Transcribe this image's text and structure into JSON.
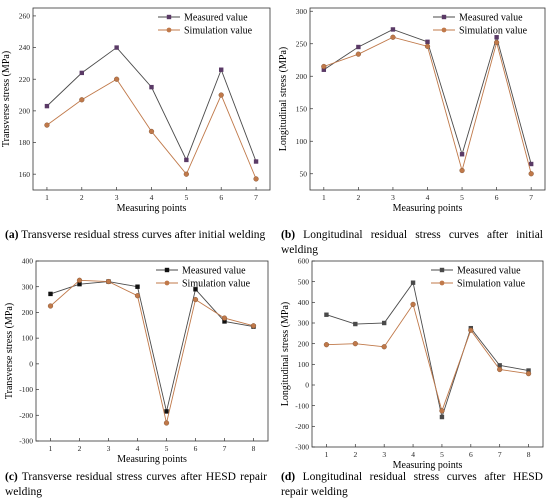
{
  "colors": {
    "measured": "#4a4a4a",
    "simulation": "#c0794a",
    "measured_marker_a": "#5a3a66",
    "measured_marker_c": "#111111"
  },
  "chart_data": [
    {
      "type": "line",
      "xlabel": "Measuring points",
      "ylabel": "Transverse stress (MPa)",
      "x": [
        1,
        2,
        3,
        4,
        5,
        6,
        7
      ],
      "xlim": [
        0.6,
        7.4
      ],
      "ylim": [
        150,
        265
      ],
      "yticks": [
        160,
        180,
        200,
        220,
        240,
        260
      ],
      "series": [
        {
          "name": "Measured value",
          "values": [
            203,
            224,
            240,
            215,
            169,
            226,
            168
          ]
        },
        {
          "name": "Simulation value",
          "values": [
            191,
            207,
            220,
            187,
            160,
            210,
            157
          ]
        }
      ],
      "legend": "top-right",
      "grid": false,
      "caption_label": "(a)",
      "caption_text": " Transverse residual stress curves after initial welding"
    },
    {
      "type": "line",
      "xlabel": "Measuring points",
      "ylabel": "Longitudinal stress (MPa)",
      "x": [
        1,
        2,
        3,
        4,
        5,
        6,
        7
      ],
      "xlim": [
        0.6,
        7.4
      ],
      "ylim": [
        25,
        305
      ],
      "yticks": [
        50,
        100,
        150,
        200,
        250,
        300
      ],
      "series": [
        {
          "name": "Measured value",
          "values": [
            210,
            245,
            272,
            253,
            80,
            260,
            65
          ]
        },
        {
          "name": "Simulation value",
          "values": [
            215,
            234,
            260,
            246,
            55,
            252,
            50
          ]
        }
      ],
      "legend": "top-right",
      "grid": false,
      "caption_label": "(b)",
      "caption_text": " Longitudinal residual stress curves after initial welding"
    },
    {
      "type": "line",
      "xlabel": "Measuring points",
      "ylabel": "Transverse stress (MPa)",
      "x": [
        1,
        2,
        3,
        4,
        5,
        6,
        7,
        8
      ],
      "xlim": [
        0.5,
        8.5
      ],
      "ylim": [
        -300,
        400
      ],
      "yticks": [
        -300,
        -200,
        -100,
        0,
        100,
        200,
        300,
        400
      ],
      "series": [
        {
          "name": "Measured value",
          "values": [
            272,
            310,
            320,
            300,
            -185,
            290,
            165,
            145
          ]
        },
        {
          "name": "Simulation value",
          "values": [
            225,
            325,
            320,
            265,
            -230,
            250,
            178,
            148
          ]
        }
      ],
      "legend": "top-right",
      "grid": false,
      "caption_label": "(c)",
      "caption_text": " Transverse residual stress curves after HESD repair welding"
    },
    {
      "type": "line",
      "xlabel": "Measuring points",
      "ylabel": "Longitudinal stress (MPa)",
      "x": [
        1,
        2,
        3,
        4,
        5,
        6,
        7,
        8
      ],
      "xlim": [
        0.5,
        8.5
      ],
      "ylim": [
        -300,
        600
      ],
      "yticks": [
        -300,
        -200,
        -100,
        0,
        100,
        200,
        300,
        400,
        500,
        600
      ],
      "series": [
        {
          "name": "Measured value",
          "values": [
            340,
            295,
            300,
            495,
            -155,
            275,
            95,
            70
          ]
        },
        {
          "name": "Simulation value",
          "values": [
            195,
            200,
            185,
            390,
            -125,
            265,
            75,
            55
          ]
        }
      ],
      "legend": "top-right",
      "grid": false,
      "caption_label": "(d)",
      "caption_text": " Longitudinal residual stress curves after HESD repair welding"
    }
  ]
}
